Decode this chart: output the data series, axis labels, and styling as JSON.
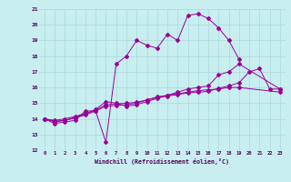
{
  "xlabel": "Windchill (Refroidissement éolien,°C)",
  "xlim": [
    -0.5,
    23.5
  ],
  "ylim": [
    12,
    21
  ],
  "xtick_labels": [
    "0",
    "1",
    "2",
    "3",
    "4",
    "5",
    "6",
    "7",
    "8",
    "9",
    "10",
    "11",
    "12",
    "13",
    "14",
    "15",
    "16",
    "17",
    "18",
    "19",
    "20",
    "21",
    "22",
    "23"
  ],
  "ytick_labels": [
    "12",
    "13",
    "14",
    "15",
    "16",
    "17",
    "18",
    "19",
    "20",
    "21"
  ],
  "yticks": [
    12,
    13,
    14,
    15,
    16,
    17,
    18,
    19,
    20,
    21
  ],
  "background_color": "#c8eef0",
  "line_color": "#990099",
  "grid_color": "#aad8d8",
  "series": [
    [
      14.0,
      13.7,
      13.8,
      13.9,
      14.5,
      14.5,
      12.5,
      17.5,
      18.0,
      19.0,
      18.7,
      18.5,
      19.4,
      19.0,
      20.6,
      20.7,
      20.4,
      19.8,
      19.0,
      17.8
    ],
    [
      14.0,
      13.8,
      13.9,
      14.1,
      14.3,
      14.6,
      15.1,
      15.0,
      14.8,
      14.9,
      15.1,
      15.3,
      15.5,
      15.7,
      15.9,
      16.0,
      16.1,
      16.8,
      17.0,
      17.5,
      null,
      null,
      null,
      15.9
    ],
    [
      14.0,
      13.85,
      13.9,
      14.05,
      14.25,
      14.5,
      14.8,
      14.85,
      14.9,
      15.0,
      15.2,
      15.4,
      15.5,
      15.6,
      15.7,
      15.8,
      15.85,
      15.9,
      16.0,
      16.0,
      null,
      null,
      null,
      15.7
    ],
    [
      14.0,
      13.9,
      14.0,
      14.15,
      14.35,
      14.55,
      14.9,
      14.95,
      15.0,
      15.05,
      15.2,
      15.35,
      15.45,
      15.55,
      15.65,
      15.7,
      15.75,
      15.95,
      16.1,
      16.3,
      17.0,
      17.2,
      15.9,
      15.9
    ]
  ]
}
